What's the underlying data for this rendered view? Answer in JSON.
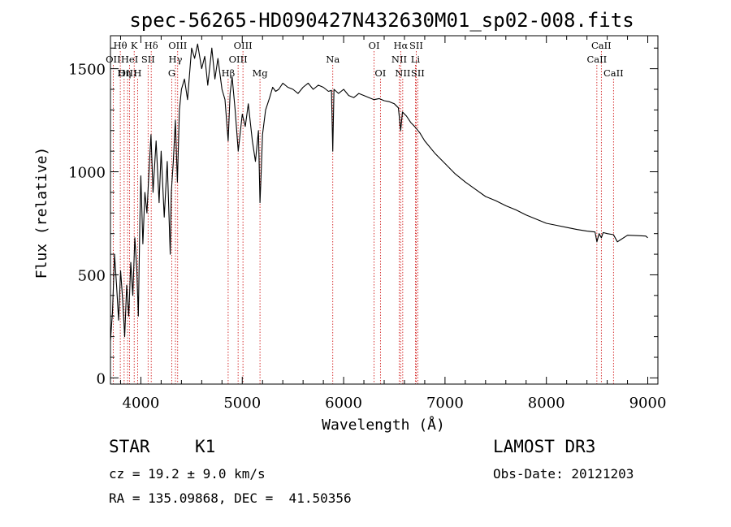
{
  "chart_data": {
    "type": "line",
    "title": "spec-56265-HD090427N432630M01_sp02-008.fits",
    "xlabel": "Wavelength (Å)",
    "ylabel": "Flux (relative)",
    "xlim": [
      3700,
      9100
    ],
    "ylim": [
      -30,
      1660
    ],
    "xticks": [
      4000,
      5000,
      6000,
      7000,
      8000,
      9000
    ],
    "yticks": [
      0,
      500,
      1000,
      1500
    ],
    "xtick_labels": [
      "4000",
      "5000",
      "6000",
      "7000",
      "8000",
      "9000"
    ],
    "ytick_labels": [
      "0",
      "500",
      "1000",
      "1500"
    ],
    "series": [
      {
        "name": "flux",
        "x": [
          3700,
          3720,
          3740,
          3760,
          3780,
          3800,
          3820,
          3840,
          3860,
          3880,
          3900,
          3920,
          3940,
          3960,
          3975,
          3990,
          4000,
          4020,
          4040,
          4060,
          4080,
          4100,
          4120,
          4150,
          4180,
          4200,
          4230,
          4260,
          4290,
          4300,
          4320,
          4340,
          4360,
          4380,
          4400,
          4430,
          4460,
          4500,
          4530,
          4560,
          4600,
          4630,
          4660,
          4700,
          4730,
          4760,
          4800,
          4830,
          4861,
          4880,
          4900,
          4930,
          4960,
          5000,
          5030,
          5060,
          5100,
          5130,
          5160,
          5175,
          5185,
          5200,
          5230,
          5270,
          5300,
          5330,
          5360,
          5400,
          5450,
          5500,
          5550,
          5600,
          5650,
          5700,
          5750,
          5800,
          5850,
          5880,
          5893,
          5905,
          5950,
          6000,
          6050,
          6100,
          6150,
          6200,
          6250,
          6300,
          6350,
          6400,
          6450,
          6500,
          6540,
          6563,
          6580,
          6620,
          6660,
          6700,
          6750,
          6800,
          6900,
          7000,
          7100,
          7200,
          7300,
          7400,
          7500,
          7600,
          7700,
          7800,
          7900,
          8000,
          8100,
          8200,
          8300,
          8400,
          8480,
          8498,
          8520,
          8542,
          8560,
          8600,
          8662,
          8700,
          8800,
          8900,
          8980,
          9000
        ],
        "y": [
          180,
          320,
          600,
          450,
          280,
          520,
          380,
          200,
          450,
          300,
          560,
          400,
          680,
          520,
          300,
          760,
          980,
          650,
          900,
          800,
          1000,
          1180,
          900,
          1150,
          850,
          1100,
          780,
          1050,
          600,
          900,
          1050,
          1250,
          950,
          1300,
          1400,
          1450,
          1350,
          1600,
          1550,
          1620,
          1500,
          1560,
          1420,
          1600,
          1450,
          1550,
          1400,
          1350,
          1150,
          1380,
          1460,
          1300,
          1100,
          1280,
          1220,
          1330,
          1150,
          1050,
          1200,
          850,
          980,
          1180,
          1300,
          1360,
          1410,
          1390,
          1400,
          1430,
          1410,
          1400,
          1380,
          1410,
          1430,
          1400,
          1420,
          1410,
          1390,
          1395,
          1100,
          1400,
          1380,
          1400,
          1370,
          1360,
          1380,
          1370,
          1360,
          1350,
          1355,
          1345,
          1340,
          1330,
          1310,
          1200,
          1290,
          1270,
          1240,
          1220,
          1190,
          1150,
          1090,
          1040,
          990,
          950,
          915,
          880,
          860,
          835,
          815,
          790,
          770,
          750,
          740,
          730,
          720,
          712,
          708,
          660,
          700,
          680,
          705,
          700,
          695,
          660,
          692,
          690,
          688,
          680
        ],
        "color": "#000000"
      }
    ],
    "line_markers": [
      {
        "label": "Hθ",
        "x": 3797,
        "row": 0
      },
      {
        "label": "K",
        "x": 3934,
        "row": 0
      },
      {
        "label": "Hδ",
        "x": 4102,
        "row": 0
      },
      {
        "label": "OII",
        "x": 3727,
        "row": 1
      },
      {
        "label": "HeI",
        "x": 3889,
        "row": 1
      },
      {
        "label": "SII",
        "x": 4071,
        "row": 1
      },
      {
        "label": "OIII",
        "x": 3869,
        "row": 2
      },
      {
        "label": "Hη",
        "x": 3835,
        "row": 2
      },
      {
        "label": "H",
        "x": 3968,
        "row": 2
      },
      {
        "label": "OIII",
        "x": 4363,
        "row": 0
      },
      {
        "label": "Hγ",
        "x": 4341,
        "row": 1
      },
      {
        "label": "G",
        "x": 4305,
        "row": 2
      },
      {
        "label": "OIII",
        "x": 5007,
        "row": 0
      },
      {
        "label": "OIII",
        "x": 4959,
        "row": 1
      },
      {
        "label": "Hβ",
        "x": 4861,
        "row": 2
      },
      {
        "label": "Mg",
        "x": 5175,
        "row": 2
      },
      {
        "label": "Na",
        "x": 5893,
        "row": 1
      },
      {
        "label": "OI",
        "x": 6300,
        "row": 0
      },
      {
        "label": "OI",
        "x": 6363,
        "row": 2
      },
      {
        "label": "Hα",
        "x": 6563,
        "row": 0
      },
      {
        "label": "SII",
        "x": 6716,
        "row": 0
      },
      {
        "label": "NII",
        "x": 6548,
        "row": 1
      },
      {
        "label": "Li",
        "x": 6708,
        "row": 1
      },
      {
        "label": "NII",
        "x": 6583,
        "row": 2
      },
      {
        "label": "SII",
        "x": 6731,
        "row": 2
      },
      {
        "label": "CaII",
        "x": 8542,
        "row": 0
      },
      {
        "label": "CaII",
        "x": 8498,
        "row": 1
      },
      {
        "label": "CaII",
        "x": 8662,
        "row": 2
      }
    ],
    "marker_color": "#cc0000"
  },
  "info": {
    "object_class": "STAR",
    "subclass": "K1",
    "survey": "LAMOST DR3",
    "cz": "cz = 19.2 ± 9.0 km/s",
    "obs_date": "Obs-Date: 20121203",
    "coords": "RA = 135.09868, DEC =  41.50356"
  }
}
